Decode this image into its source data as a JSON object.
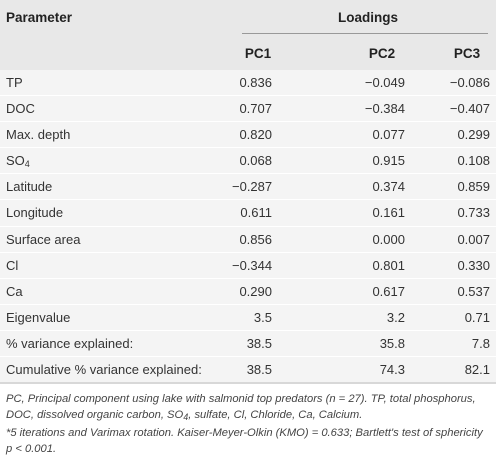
{
  "header": {
    "parameter": "Parameter",
    "loadings": "Loadings",
    "pc1": "PC1",
    "pc2": "PC2",
    "pc3": "PC3"
  },
  "rows": [
    {
      "param": "TP",
      "pc1": "0.836",
      "pc2": "−0.049",
      "pc3": "−0.086"
    },
    {
      "param": "DOC",
      "pc1": "0.707",
      "pc2": "−0.384",
      "pc3": "−0.407"
    },
    {
      "param": "Max. depth",
      "pc1": "0.820",
      "pc2": "0.077",
      "pc3": "0.299"
    },
    {
      "param": "SO",
      "param_sub": "4",
      "pc1": "0.068",
      "pc2": "0.915",
      "pc3": "0.108"
    },
    {
      "param": "Latitude",
      "pc1": "−0.287",
      "pc2": "0.374",
      "pc3": "0.859"
    },
    {
      "param": "Longitude",
      "pc1": "0.611",
      "pc2": "0.161",
      "pc3": "0.733"
    },
    {
      "param": "Surface area",
      "pc1": "0.856",
      "pc2": "0.000",
      "pc3": "0.007"
    },
    {
      "param": "Cl",
      "pc1": "−0.344",
      "pc2": "0.801",
      "pc3": "0.330"
    },
    {
      "param": "Ca",
      "pc1": "0.290",
      "pc2": "0.617",
      "pc3": "0.537"
    },
    {
      "param": "Eigenvalue",
      "pc1": "3.5",
      "pc2": "3.2",
      "pc3": "0.71"
    },
    {
      "param": "% variance explained:",
      "pc1": "38.5",
      "pc2": "35.8",
      "pc3": "7.8"
    },
    {
      "param": "Cumulative % variance explained:",
      "pc1": "38.5",
      "pc2": "74.3",
      "pc3": "82.1"
    }
  ],
  "notes": {
    "line1": "PC, Principal component using lake with salmonid top predators (n = 27). TP, total phosphorus, DOC, dissolved organic carbon, SO",
    "line1_sub": "4",
    "line1_tail": ", sulfate, Cl, Chloride, Ca, Calcium.",
    "line2": "*5 iterations and Varimax rotation. Kaiser-Meyer-Olkin (KMO) = 0.633; Bartlett's test of sphericity p < 0.001."
  }
}
